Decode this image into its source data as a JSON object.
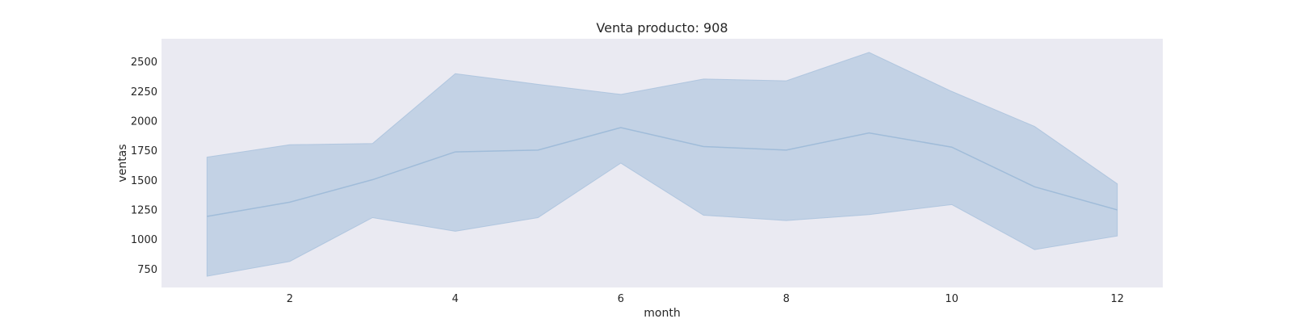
{
  "chart_data": {
    "type": "line",
    "title": "Venta producto: 908",
    "xlabel": "month",
    "ylabel": "ventas",
    "x": [
      1,
      2,
      3,
      4,
      5,
      6,
      7,
      8,
      9,
      10,
      11,
      12
    ],
    "xlim": [
      0.45,
      12.55
    ],
    "ylim": [
      595,
      2695
    ],
    "xticks": [
      2,
      4,
      6,
      8,
      10,
      12
    ],
    "yticks": [
      750,
      1000,
      1250,
      1500,
      1750,
      2000,
      2250,
      2500
    ],
    "grid": false,
    "series": [
      {
        "mean": [
          1195,
          1315,
          1505,
          1740,
          1755,
          1945,
          1785,
          1755,
          1900,
          1780,
          1445,
          1250
        ],
        "lower": [
          690,
          815,
          1185,
          1070,
          1185,
          1645,
          1205,
          1160,
          1210,
          1295,
          915,
          1030
        ],
        "upper": [
          1695,
          1800,
          1810,
          2400,
          2310,
          2225,
          2355,
          2340,
          2580,
          2250,
          1955,
          1470
        ]
      }
    ],
    "colors": {
      "plot_bg": "#eaeaf2",
      "band": "#a8c1dc",
      "line": "#a0bcd9"
    }
  }
}
